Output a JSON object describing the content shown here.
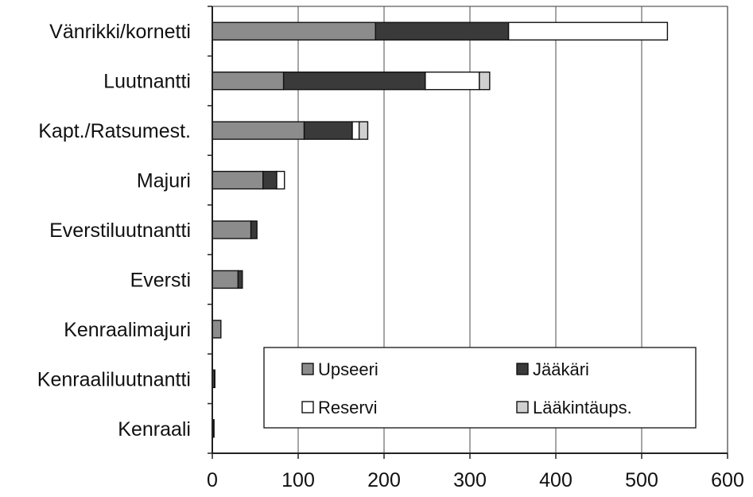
{
  "chart_data": {
    "type": "bar",
    "orientation": "horizontal",
    "stacked": true,
    "title": "",
    "xlabel": "",
    "ylabel": "",
    "xlim": [
      0,
      600
    ],
    "xticks": [
      "0",
      "100",
      "200",
      "300",
      "400",
      "500",
      "600"
    ],
    "grid": true,
    "legend_position": "bottom-right",
    "categories": [
      "Vänrikki/kornetti",
      "Luutnantti",
      "Kapt./Ratsumest.",
      "Majuri",
      "Everstiluutnantti",
      "Eversti",
      "Kenraalimajuri",
      "Kenraaliluutnantti",
      "Kenraali"
    ],
    "series": [
      {
        "name": "Upseeri",
        "color": "#8c8c8c",
        "values": [
          190,
          83,
          107,
          59,
          45,
          30,
          10,
          2,
          1
        ]
      },
      {
        "name": "Jääkäri",
        "color": "#3a3a3a",
        "values": [
          155,
          165,
          56,
          16,
          7,
          5,
          0,
          1,
          1
        ]
      },
      {
        "name": "Reservi",
        "color": "#ffffff",
        "values": [
          185,
          63,
          8,
          9,
          0,
          0,
          0,
          0,
          0
        ]
      },
      {
        "name": "Lääkintäups.",
        "color": "#d0d0d0",
        "values": [
          0,
          12,
          10,
          0,
          0,
          0,
          0,
          0,
          0
        ]
      }
    ]
  }
}
